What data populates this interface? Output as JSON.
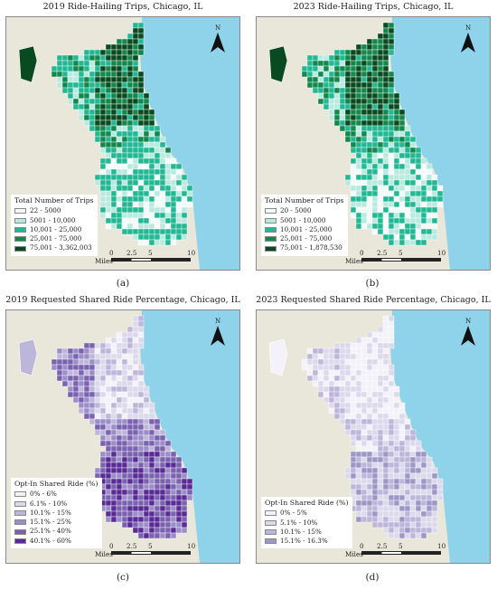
{
  "panels": [
    {
      "title": "2019 Ride-Hailing Trips, Chicago, IL",
      "caption": "(a)",
      "legend_title": "Total Number of Trips",
      "legend": [
        {
          "label": "22 - 5000",
          "color": "#f2fbf7"
        },
        {
          "label": "5001 - 10,000",
          "color": "#b9eadf"
        },
        {
          "label": "10,001 - 25,000",
          "color": "#22b893"
        },
        {
          "label": "25,001 - 75,000",
          "color": "#13874c"
        },
        {
          "label": "75,001 - 3,362,003",
          "color": "#0a4a20"
        }
      ]
    },
    {
      "title": "2023 Ride-Hailing Trips, Chicago, IL",
      "caption": "(b)",
      "legend_title": "Total Number of Trips",
      "legend": [
        {
          "label": "20 - 5000",
          "color": "#f2fbf7"
        },
        {
          "label": "5001 - 10,000",
          "color": "#b9eadf"
        },
        {
          "label": "10,001 - 25,000",
          "color": "#22b893"
        },
        {
          "label": "25,001 - 75,000",
          "color": "#13874c"
        },
        {
          "label": "75,001 - 1,878,530",
          "color": "#0a4a20"
        }
      ]
    },
    {
      "title": "2019 Requested Shared Ride Percentage, Chicago, IL",
      "caption": "(c)",
      "legend_title": "Opt-In Shared Ride (%)",
      "legend": [
        {
          "label": "0% - 6%",
          "color": "#f3f2f8"
        },
        {
          "label": "6.1% - 10%",
          "color": "#dcd9ec"
        },
        {
          "label": "10.1% - 15%",
          "color": "#bcb6db"
        },
        {
          "label": "15.1% - 25%",
          "color": "#9b8ec8"
        },
        {
          "label": "25.1% - 40%",
          "color": "#7a62b0"
        },
        {
          "label": "40.1% - 60%",
          "color": "#5a2a96"
        }
      ]
    },
    {
      "title": "2023 Requested Shared Ride Percentage, Chicago, IL",
      "caption": "(d)",
      "legend_title": "Opt-In Shared Ride (%)",
      "legend": [
        {
          "label": "0% - 5%",
          "color": "#f3f2f8"
        },
        {
          "label": "5.1% - 10%",
          "color": "#dcd9ec"
        },
        {
          "label": "10.1% - 15%",
          "color": "#bcb6db"
        },
        {
          "label": "15.1% - 16.3%",
          "color": "#9d97c8"
        }
      ]
    }
  ],
  "scale": {
    "ticks": [
      "0",
      "2.5",
      "5",
      "10"
    ],
    "unit": "Miles"
  },
  "north_label": "N",
  "map_colors": {
    "lake": "#8fd3ea",
    "land": "#e9e6da"
  }
}
